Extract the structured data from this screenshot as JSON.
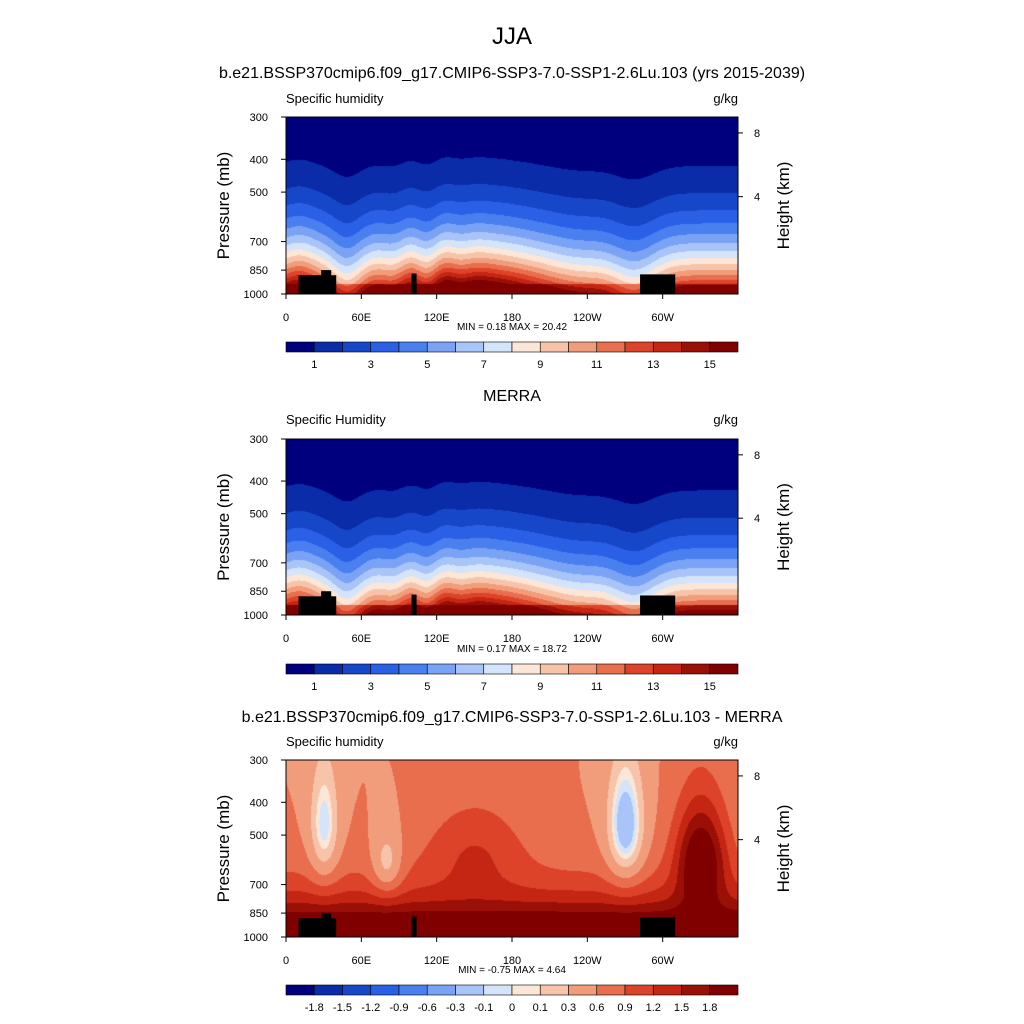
{
  "figure": {
    "season": "JJA"
  },
  "chart_data": [
    {
      "type": "heatmap",
      "title": "b.e21.BSSP370cmip6.f09_g17.CMIP6-SSP3-7.0-SSP1-2.6Lu.103 (yrs 2015-2039)",
      "left_label": "Specific humidity",
      "units": "g/kg",
      "xlabel": "",
      "ylabel": "Pressure (mb)",
      "ylabel_right": "Height (km)",
      "x_ticks": [
        "0",
        "60E",
        "120E",
        "180",
        "120W",
        "60W"
      ],
      "x_tick_values": [
        0,
        60,
        120,
        180,
        240,
        300
      ],
      "xlim": [
        0,
        360
      ],
      "y_ticks": [
        "300",
        "400",
        "500",
        "700",
        "850",
        "1000"
      ],
      "y_tick_values": [
        300,
        400,
        500,
        700,
        850,
        1000
      ],
      "ylim": [
        1000,
        300
      ],
      "y_scale": "log",
      "right_ticks": [
        "8",
        "4"
      ],
      "right_tick_values": [
        8,
        4
      ],
      "stats_text": "MIN =   0.18  MAX =  20.42",
      "min": 0.18,
      "max": 20.42,
      "colorbar": {
        "labels": [
          "1",
          "3",
          "5",
          "7",
          "9",
          "11",
          "13",
          "15"
        ],
        "levels": [
          1,
          2,
          3,
          4,
          5,
          6,
          7,
          8,
          9,
          10,
          11,
          12,
          13,
          14,
          15
        ],
        "colors": [
          "#00007f",
          "#0a2ca8",
          "#1747c9",
          "#2a60e6",
          "#4a7ff0",
          "#7aa2f5",
          "#a8c4f8",
          "#d4e4fb",
          "#fbe6d7",
          "#f7c4aa",
          "#f19d7c",
          "#e86e4e",
          "#dd4329",
          "#c42613",
          "#9a1006",
          "#800000"
        ]
      }
    },
    {
      "type": "heatmap",
      "title": "MERRA",
      "left_label": "Specific Humidity",
      "units": "g/kg",
      "xlabel": "",
      "ylabel": "Pressure (mb)",
      "ylabel_right": "Height (km)",
      "x_ticks": [
        "0",
        "60E",
        "120E",
        "180",
        "120W",
        "60W"
      ],
      "x_tick_values": [
        0,
        60,
        120,
        180,
        240,
        300
      ],
      "xlim": [
        0,
        360
      ],
      "y_ticks": [
        "300",
        "400",
        "500",
        "700",
        "850",
        "1000"
      ],
      "y_tick_values": [
        300,
        400,
        500,
        700,
        850,
        1000
      ],
      "ylim": [
        1000,
        300
      ],
      "y_scale": "log",
      "right_ticks": [
        "8",
        "4"
      ],
      "right_tick_values": [
        8,
        4
      ],
      "stats_text": "MIN =   0.17  MAX =  18.72",
      "min": 0.17,
      "max": 18.72,
      "colorbar": {
        "labels": [
          "1",
          "3",
          "5",
          "7",
          "9",
          "11",
          "13",
          "15"
        ],
        "levels": [
          1,
          2,
          3,
          4,
          5,
          6,
          7,
          8,
          9,
          10,
          11,
          12,
          13,
          14,
          15
        ],
        "colors": [
          "#00007f",
          "#0a2ca8",
          "#1747c9",
          "#2a60e6",
          "#4a7ff0",
          "#7aa2f5",
          "#a8c4f8",
          "#d4e4fb",
          "#fbe6d7",
          "#f7c4aa",
          "#f19d7c",
          "#e86e4e",
          "#dd4329",
          "#c42613",
          "#9a1006",
          "#800000"
        ]
      }
    },
    {
      "type": "heatmap",
      "title": "b.e21.BSSP370cmip6.f09_g17.CMIP6-SSP3-7.0-SSP1-2.6Lu.103 - MERRA",
      "left_label": "Specific humidity",
      "units": "g/kg",
      "xlabel": "",
      "ylabel": "Pressure (mb)",
      "ylabel_right": "Height (km)",
      "x_ticks": [
        "0",
        "60E",
        "120E",
        "180",
        "120W",
        "60W"
      ],
      "x_tick_values": [
        0,
        60,
        120,
        180,
        240,
        300
      ],
      "xlim": [
        0,
        360
      ],
      "y_ticks": [
        "300",
        "400",
        "500",
        "700",
        "850",
        "1000"
      ],
      "y_tick_values": [
        300,
        400,
        500,
        700,
        850,
        1000
      ],
      "ylim": [
        1000,
        300
      ],
      "y_scale": "log",
      "right_ticks": [
        "8",
        "4"
      ],
      "right_tick_values": [
        8,
        4
      ],
      "stats_text": "MIN =  -0.75  MAX =   4.64",
      "min": -0.75,
      "max": 4.64,
      "colorbar": {
        "labels": [
          "-1.8",
          "-1.5",
          "-1.2",
          "-0.9",
          "-0.6",
          "-0.3",
          "-0.1",
          "0",
          "0.1",
          "0.3",
          "0.6",
          "0.9",
          "1.2",
          "1.5",
          "1.8"
        ],
        "levels": [
          -1.8,
          -1.5,
          -1.2,
          -0.9,
          -0.6,
          -0.3,
          -0.1,
          0,
          0.1,
          0.3,
          0.6,
          0.9,
          1.2,
          1.5,
          1.8
        ],
        "colors": [
          "#00007f",
          "#0a2ca8",
          "#1747c9",
          "#2a60e6",
          "#4a7ff0",
          "#7aa2f5",
          "#a8c4f8",
          "#d4e4fb",
          "#fbe6d7",
          "#f7c4aa",
          "#f19d7c",
          "#e86e4e",
          "#dd4329",
          "#c42613",
          "#9a1006",
          "#800000"
        ]
      }
    }
  ]
}
